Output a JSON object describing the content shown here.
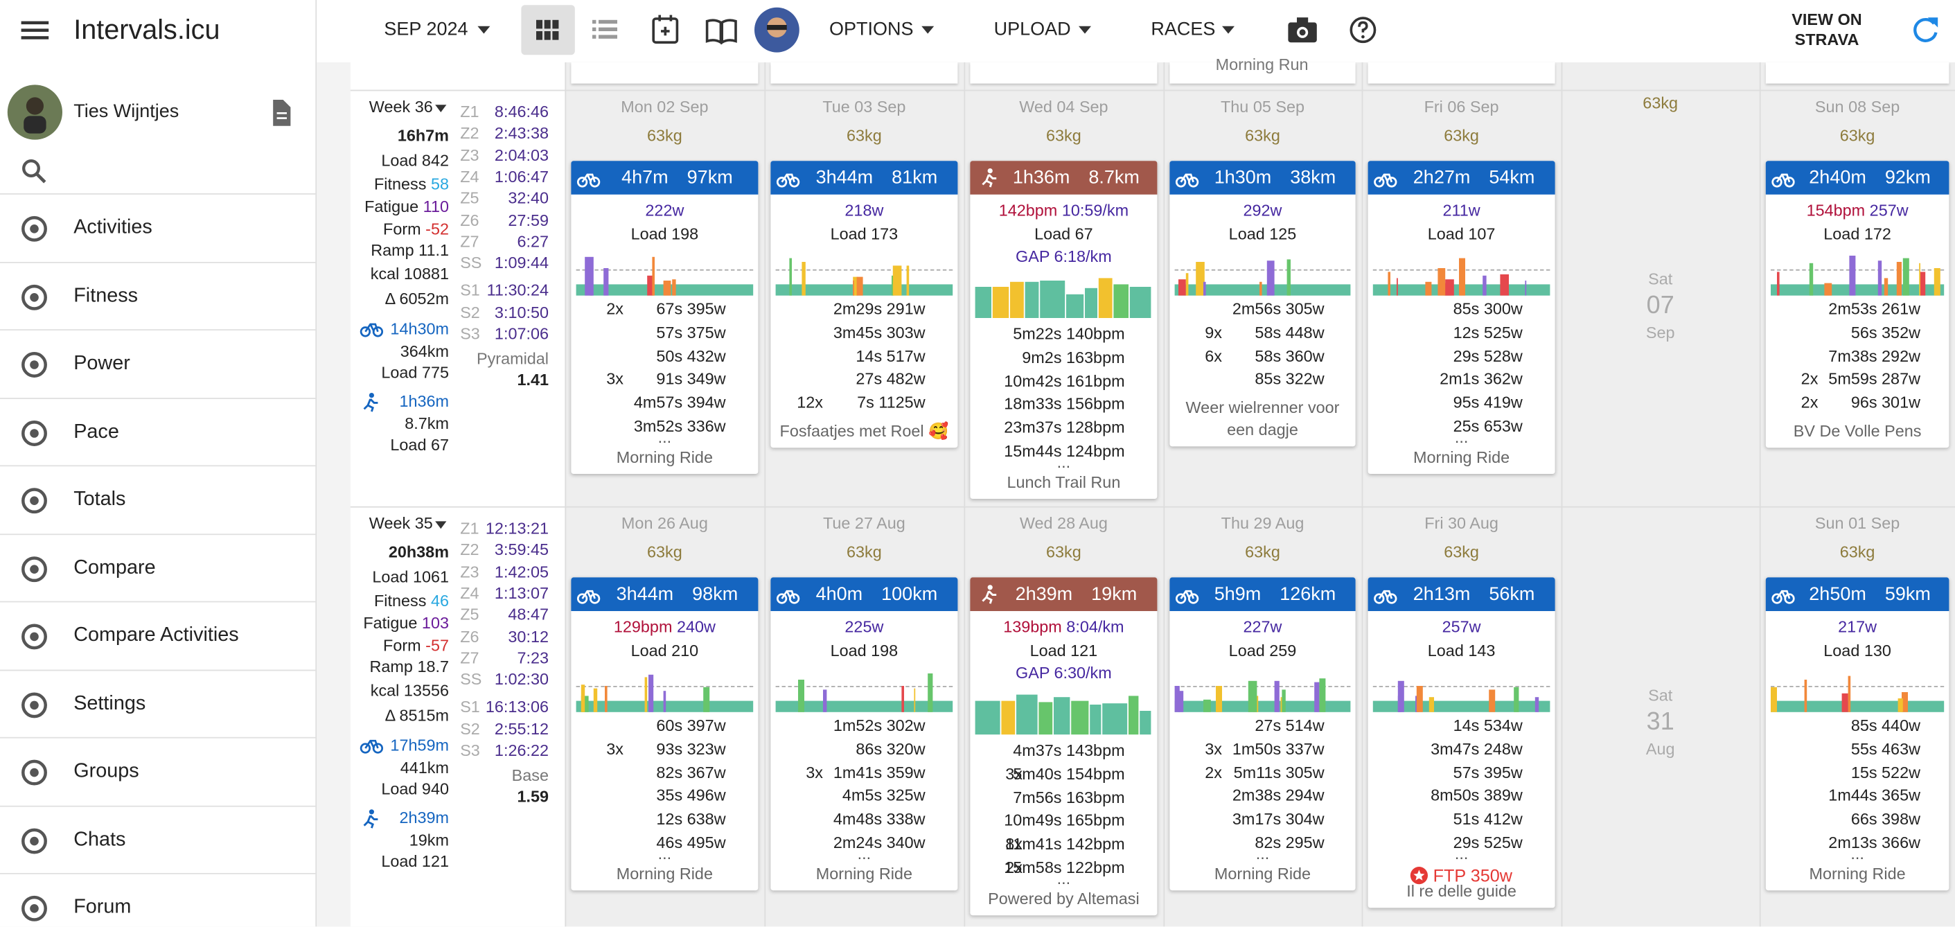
{
  "app": {
    "title": "Intervals.icu",
    "user": "Ties Wijntjes",
    "nav": [
      "Activities",
      "Fitness",
      "Power",
      "Pace",
      "Totals",
      "Compare",
      "Compare Activities",
      "Settings",
      "Groups",
      "Chats",
      "Forum"
    ]
  },
  "toolbar": {
    "month": "SEP 2024",
    "options": "OPTIONS",
    "upload": "UPLOAD",
    "races": "RACES",
    "strava": [
      "VIEW ON",
      "STRAVA"
    ]
  },
  "prev_row": {
    "thu": "Morning Run"
  },
  "weeks": [
    {
      "label": "Week 36",
      "total": "16h7m",
      "stats": [
        {
          "label": "Load",
          "value": "842",
          "color": "#222"
        },
        {
          "label": "Fitness",
          "value": "58",
          "color": "#29a8e0"
        },
        {
          "label": "Fatigue",
          "value": "110",
          "color": "#6a1b9a"
        },
        {
          "label": "Form",
          "value": "-52",
          "color": "#d32f2f"
        },
        {
          "label": "Ramp",
          "value": "11.1",
          "color": "#222"
        },
        {
          "label": "kcal",
          "value": "10881",
          "color": "#222"
        }
      ],
      "climb": "Δ 6052m",
      "ride": [
        "14h30m",
        "364km",
        "Load 775"
      ],
      "run": [
        "1h36m",
        "8.7km",
        "Load 67"
      ],
      "zones": [
        [
          "Z1",
          "8:46:46"
        ],
        [
          "Z2",
          "2:43:38"
        ],
        [
          "Z3",
          "2:04:03"
        ],
        [
          "Z4",
          "1:06:47"
        ],
        [
          "Z5",
          "32:40"
        ],
        [
          "Z6",
          "27:59"
        ],
        [
          "Z7",
          "6:27"
        ],
        [
          "SS",
          "1:09:44"
        ]
      ],
      "s": [
        [
          "S1",
          "11:30:24"
        ],
        [
          "S2",
          "3:10:50"
        ],
        [
          "S3",
          "1:07:06"
        ]
      ],
      "dist": [
        "Pyramidal",
        "1.41"
      ],
      "days": [
        {
          "date": "Mon 02 Sep",
          "weight": "63kg",
          "act": {
            "kind": "ride",
            "time": "4h7m",
            "dist": "97km",
            "line1": [
              {
                "text": "222w",
                "kind": "w"
              }
            ],
            "load": "Load 198",
            "intervals": [
              [
                "2x",
                "67s 395w"
              ],
              [
                "57s 375w"
              ],
              [
                "50s 432w"
              ],
              [
                "3x",
                "91s 349w"
              ],
              [
                "4m57s 394w"
              ],
              [
                "3m52s 336w"
              ]
            ],
            "more": "...",
            "name": "Morning Ride"
          }
        },
        {
          "date": "Tue 03 Sep",
          "weight": "63kg",
          "act": {
            "kind": "ride",
            "time": "3h44m",
            "dist": "81km",
            "line1": [
              {
                "text": "218w",
                "kind": "w"
              }
            ],
            "load": "Load 173",
            "intervals": [
              [
                "2m29s 291w"
              ],
              [
                "3m45s 303w"
              ],
              [
                "14s 517w"
              ],
              [
                "27s 482w"
              ],
              [
                "12x",
                "7s 1125w"
              ]
            ],
            "name": "Fosfaatjes met Roel 🥰"
          }
        },
        {
          "date": "Wed 04 Sep",
          "weight": "63kg",
          "act": {
            "kind": "run",
            "time": "1h36m",
            "dist": "8.7km",
            "line1": [
              {
                "text": "142bpm",
                "kind": "hr"
              },
              {
                "text": "10:59/km",
                "kind": "pace"
              }
            ],
            "load": "Load 67",
            "gap": "GAP 6:18/km",
            "intervals": [
              [
                "5m22s 140bpm"
              ],
              [
                "9m2s 163bpm"
              ],
              [
                "10m42s 161bpm"
              ],
              [
                "18m33s 156bpm"
              ],
              [
                "23m37s 128bpm"
              ],
              [
                "15m44s 124bpm"
              ]
            ],
            "more": "...",
            "name": "Lunch Trail Run"
          }
        },
        {
          "date": "Thu 05 Sep",
          "weight": "63kg",
          "act": {
            "kind": "ride",
            "time": "1h30m",
            "dist": "38km",
            "line1": [
              {
                "text": "292w",
                "kind": "w"
              }
            ],
            "load": "Load 125",
            "intervals": [
              [
                "2m56s 305w"
              ],
              [
                "9x",
                "58s 448w"
              ],
              [
                "6x",
                "58s 360w"
              ],
              [
                "85s 322w"
              ]
            ],
            "name": "Weer wielrenner voor een dagje"
          }
        },
        {
          "date": "Fri 06 Sep",
          "weight": "63kg",
          "act": {
            "kind": "ride",
            "time": "2h27m",
            "dist": "54km",
            "line1": [
              {
                "text": "211w",
                "kind": "w"
              }
            ],
            "load": "Load 107",
            "intervals": [
              [
                "85s 300w"
              ],
              [
                "12s 525w"
              ],
              [
                "29s 528w"
              ],
              [
                "2m1s 362w"
              ],
              [
                "95s 419w"
              ],
              [
                "25s 653w"
              ]
            ],
            "more": "...",
            "name": "Morning Ride"
          }
        },
        {
          "day": "Sat",
          "num": "07",
          "month": "Sep",
          "weight": "63kg"
        },
        {
          "date": "Sun 08 Sep",
          "weight": "63kg",
          "act": {
            "kind": "ride",
            "time": "2h40m",
            "dist": "92km",
            "line1": [
              {
                "text": "154bpm",
                "kind": "hr"
              },
              {
                "text": "257w",
                "kind": "w"
              }
            ],
            "load": "Load 172",
            "intervals": [
              [
                "2m53s 261w"
              ],
              [
                "56s 352w"
              ],
              [
                "7m38s 292w"
              ],
              [
                "2x",
                "5m59s 287w"
              ],
              [
                "2x",
                "96s 301w"
              ]
            ],
            "name": "BV De Volle Pens"
          }
        }
      ]
    },
    {
      "label": "Week 35",
      "total": "20h38m",
      "stats": [
        {
          "label": "Load",
          "value": "1061",
          "color": "#222"
        },
        {
          "label": "Fitness",
          "value": "46",
          "color": "#29a8e0"
        },
        {
          "label": "Fatigue",
          "value": "103",
          "color": "#6a1b9a"
        },
        {
          "label": "Form",
          "value": "-57",
          "color": "#d32f2f"
        },
        {
          "label": "Ramp",
          "value": "18.7",
          "color": "#222"
        },
        {
          "label": "kcal",
          "value": "13556",
          "color": "#222"
        }
      ],
      "climb": "Δ 8515m",
      "ride": [
        "17h59m",
        "441km",
        "Load 940"
      ],
      "run": [
        "2h39m",
        "19km",
        "Load 121"
      ],
      "zones": [
        [
          "Z1",
          "12:13:21"
        ],
        [
          "Z2",
          "3:59:45"
        ],
        [
          "Z3",
          "1:42:05"
        ],
        [
          "Z4",
          "1:13:07"
        ],
        [
          "Z5",
          "48:47"
        ],
        [
          "Z6",
          "30:12"
        ],
        [
          "Z7",
          "7:23"
        ],
        [
          "SS",
          "1:02:30"
        ]
      ],
      "s": [
        [
          "S1",
          "16:13:06"
        ],
        [
          "S2",
          "2:55:12"
        ],
        [
          "S3",
          "1:26:22"
        ]
      ],
      "dist": [
        "Base",
        "1.59"
      ],
      "days": [
        {
          "date": "Mon 26 Aug",
          "weight": "63kg",
          "act": {
            "kind": "ride",
            "time": "3h44m",
            "dist": "98km",
            "line1": [
              {
                "text": "129bpm",
                "kind": "hr"
              },
              {
                "text": "240w",
                "kind": "w"
              }
            ],
            "load": "Load 210",
            "intervals": [
              [
                "60s 397w"
              ],
              [
                "3x",
                "93s 323w"
              ],
              [
                "82s 367w"
              ],
              [
                "35s 496w"
              ],
              [
                "12s 638w"
              ],
              [
                "46s 495w"
              ]
            ],
            "more": "...",
            "name": "Morning Ride"
          }
        },
        {
          "date": "Tue 27 Aug",
          "weight": "63kg",
          "act": {
            "kind": "ride",
            "time": "4h0m",
            "dist": "100km",
            "line1": [
              {
                "text": "225w",
                "kind": "w"
              }
            ],
            "load": "Load 198",
            "intervals": [
              [
                "1m52s 302w"
              ],
              [
                "86s 320w"
              ],
              [
                "3x",
                "1m41s 359w"
              ],
              [
                "4m5s 325w"
              ],
              [
                "4m48s 338w"
              ],
              [
                "2m24s 340w"
              ]
            ],
            "more": "...",
            "name": "Morning Ride"
          }
        },
        {
          "date": "Wed 28 Aug",
          "weight": "63kg",
          "act": {
            "kind": "run",
            "time": "2h39m",
            "dist": "19km",
            "line1": [
              {
                "text": "139bpm",
                "kind": "hr"
              },
              {
                "text": "8:04/km",
                "kind": "pace"
              }
            ],
            "load": "Load 121",
            "gap": "GAP 6:30/km",
            "intervals": [
              [
                "4m37s 143bpm"
              ],
              [
                "3x",
                "5m40s 154bpm"
              ],
              [
                "7m56s 163bpm"
              ],
              [
                "10m49s 165bpm"
              ],
              [
                "8x",
                "11m41s 142bpm"
              ],
              [
                "2x",
                "15m58s 122bpm"
              ]
            ],
            "more": "...",
            "name": "Powered by Altemasi"
          }
        },
        {
          "date": "Thu 29 Aug",
          "weight": "63kg",
          "act": {
            "kind": "ride",
            "time": "5h9m",
            "dist": "126km",
            "line1": [
              {
                "text": "227w",
                "kind": "w"
              }
            ],
            "load": "Load 259",
            "intervals": [
              [
                "27s 514w"
              ],
              [
                "3x",
                "1m50s 337w"
              ],
              [
                "2x",
                "5m11s 305w"
              ],
              [
                "2m38s 294w"
              ],
              [
                "3m17s 304w"
              ],
              [
                "82s 295w"
              ]
            ],
            "more": "...",
            "name": "Morning Ride"
          }
        },
        {
          "date": "Fri 30 Aug",
          "weight": "63kg",
          "act": {
            "kind": "ride",
            "time": "2h13m",
            "dist": "56km",
            "line1": [
              {
                "text": "257w",
                "kind": "w"
              }
            ],
            "load": "Load 143",
            "intervals": [
              [
                "14s 534w"
              ],
              [
                "3m47s 248w"
              ],
              [
                "57s 395w"
              ],
              [
                "8m50s 389w"
              ],
              [
                "51s 412w"
              ],
              [
                "29s 525w"
              ]
            ],
            "more": "...",
            "ftp": "FTP 350w",
            "name": "Il re delle guide"
          }
        },
        {
          "day": "Sat",
          "num": "31",
          "month": "Aug"
        },
        {
          "date": "Sun 01 Sep",
          "weight": "63kg",
          "act": {
            "kind": "ride",
            "time": "2h50m",
            "dist": "59km",
            "line1": [
              {
                "text": "217w",
                "kind": "w"
              }
            ],
            "load": "Load 130",
            "intervals": [
              [
                "85s 440w"
              ],
              [
                "55s 463w"
              ],
              [
                "15s 522w"
              ],
              [
                "1m44s 365w"
              ],
              [
                "66s 398w"
              ],
              [
                "2m13s 366w"
              ]
            ],
            "more": "...",
            "name": "Morning Ride"
          }
        }
      ]
    }
  ]
}
